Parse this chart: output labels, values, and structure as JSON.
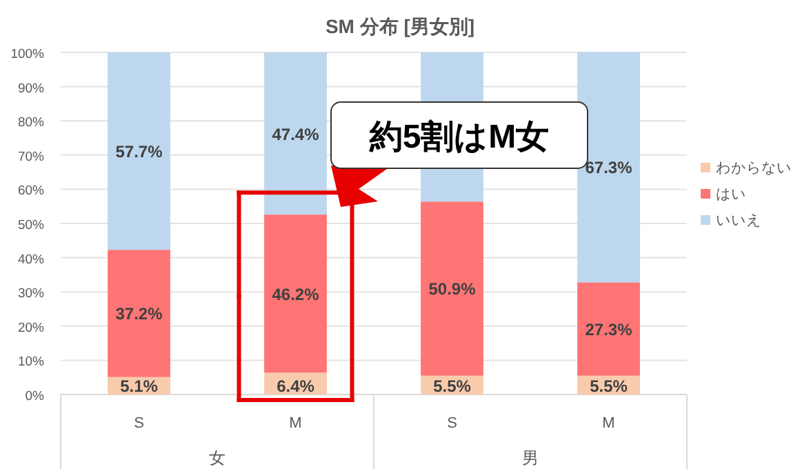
{
  "chart_data": {
    "type": "bar",
    "title": "SM 分布 [男女別]",
    "stacked": true,
    "categories": [
      "S",
      "M",
      "S",
      "M"
    ],
    "series": [
      {
        "name": "わからない",
        "color": "#f8cbad",
        "values": [
          5.1,
          6.4,
          5.5,
          5.5
        ],
        "value_labels": [
          "5.1%",
          "6.4%",
          "5.5%",
          "5.5%"
        ]
      },
      {
        "name": "はい",
        "color": "#ff7575",
        "values": [
          37.2,
          46.2,
          50.9,
          27.3
        ],
        "value_labels": [
          "37.2%",
          "46.2%",
          "50.9%",
          "27.3%"
        ]
      },
      {
        "name": "いいえ",
        "color": "#bdd7ee",
        "values": [
          57.7,
          47.4,
          43.6,
          67.3
        ],
        "value_labels": [
          "57.7%",
          "47.4%",
          null,
          "67.3%"
        ]
      }
    ],
    "ylim": [
      0,
      100
    ],
    "yticks": [
      {
        "value": 0,
        "label": "0%"
      },
      {
        "value": 10,
        "label": "10%"
      },
      {
        "value": 20,
        "label": "20%"
      },
      {
        "value": 30,
        "label": "30%"
      },
      {
        "value": 40,
        "label": "40%"
      },
      {
        "value": 50,
        "label": "50%"
      },
      {
        "value": 60,
        "label": "60%"
      },
      {
        "value": 70,
        "label": "70%"
      },
      {
        "value": 80,
        "label": "80%"
      },
      {
        "value": 90,
        "label": "90%"
      },
      {
        "value": 100,
        "label": "100%"
      }
    ],
    "grid": "y",
    "legend": "right",
    "annotations": [
      "女",
      "男",
      "約5割はM女"
    ]
  }
}
